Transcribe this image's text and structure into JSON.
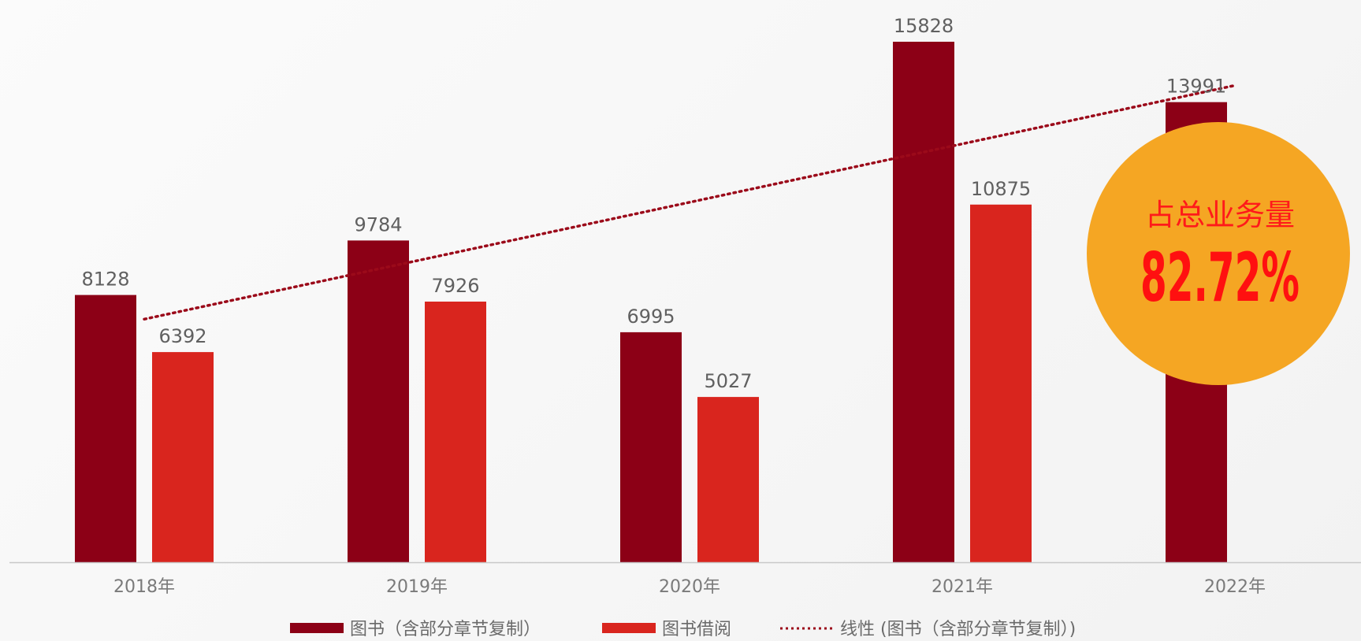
{
  "chart_data": {
    "type": "bar",
    "categories": [
      "2018年",
      "2019年",
      "2020年",
      "2021年",
      "2022年"
    ],
    "series": [
      {
        "name": "图书（含部分章节复制）",
        "color": "#8c0016",
        "values": [
          8128,
          9784,
          6995,
          15828,
          13991
        ]
      },
      {
        "name": "图书借阅",
        "color": "#d9251e",
        "values": [
          6392,
          7926,
          5027,
          10875,
          null
        ]
      }
    ],
    "trendline": {
      "name": "线性 (图书（含部分章节复制）)",
      "color": "#9b0a1a",
      "style": "dotted",
      "series": "图书（含部分章节复制）"
    },
    "ylim": [
      0,
      17000
    ],
    "grid": false,
    "legend_position": "bottom",
    "title": "",
    "xlabel": "",
    "ylabel": ""
  },
  "badge": {
    "caption": "占总业务量",
    "value": "82.72%",
    "color": "#f5a623"
  }
}
